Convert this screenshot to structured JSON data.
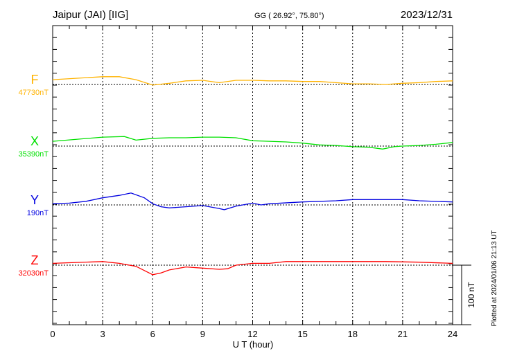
{
  "header": {
    "station": "Jaipur (JAI)  [IIG]",
    "coords": "GG ( 26.92°,  75.80°)",
    "date": "2023/12/31"
  },
  "footer_note": "Plotted at 2024/01/06 21:13 UT",
  "chart_data": {
    "type": "line",
    "title": "Jaipur (JAI)  [IIG]",
    "xlabel": "U T (hour)",
    "xlim": [
      0,
      24
    ],
    "xticks": [
      "0",
      "3",
      "6",
      "9",
      "12",
      "15",
      "18",
      "21",
      "24"
    ],
    "grid": "vertical dotted every 3 hours",
    "scale_bar": "100 nT",
    "series": [
      {
        "name": "F",
        "baseline_label": "47730nT",
        "baseline": 47730,
        "color": "#ffb300",
        "x": [
          0,
          3,
          4,
          5,
          6,
          7,
          8,
          9,
          10,
          11,
          12,
          13,
          14,
          15,
          16,
          17,
          18,
          19,
          20,
          21,
          22,
          23,
          24
        ],
        "values": [
          47738,
          47743,
          47743,
          47738,
          47729,
          47732,
          47736,
          47737,
          47733,
          47737,
          47737,
          47736,
          47736,
          47735,
          47735,
          47733,
          47731,
          47731,
          47730,
          47732,
          47733,
          47735,
          47736
        ]
      },
      {
        "name": "X",
        "baseline_label": "35390nT",
        "baseline": 35390,
        "color": "#00e000",
        "x": [
          0,
          3,
          4.3,
          5,
          6,
          7,
          8,
          9,
          10,
          11,
          12,
          13,
          14,
          15,
          16,
          17,
          18,
          19,
          19.8,
          20.5,
          21,
          22,
          23,
          24
        ],
        "values": [
          35398,
          35405,
          35406,
          35400,
          35403,
          35404,
          35404,
          35405,
          35405,
          35404,
          35399,
          35398,
          35397,
          35395,
          35392,
          35391,
          35389,
          35388,
          35385,
          35389,
          35390,
          35391,
          35393,
          35396
        ]
      },
      {
        "name": "Y",
        "baseline_label": "190nT",
        "baseline": 190,
        "color": "#0000e0",
        "x": [
          0,
          1,
          2,
          3,
          4,
          4.7,
          5.5,
          6,
          6.5,
          7,
          8,
          9,
          10,
          10.3,
          11,
          12,
          12.5,
          13,
          15,
          17,
          18,
          20,
          21,
          22,
          24
        ],
        "values": [
          192,
          193,
          196,
          202,
          206,
          210,
          202,
          192,
          187,
          185,
          187,
          189,
          184,
          182,
          188,
          193,
          190,
          192,
          195,
          197,
          199,
          199,
          199,
          197,
          195
        ]
      },
      {
        "name": "Z",
        "baseline_label": "32030nT",
        "baseline": 32030,
        "color": "#ff0000",
        "x": [
          0,
          3,
          4,
          5,
          6,
          6.5,
          7,
          8,
          9,
          10,
          10.5,
          11,
          12,
          13,
          14,
          16,
          18,
          20,
          22,
          24
        ],
        "values": [
          32033,
          32036,
          32033,
          32028,
          32014,
          32017,
          32022,
          32027,
          32025,
          32023,
          32024,
          32030,
          32033,
          32033,
          32036,
          32036,
          32036,
          32036,
          32035,
          32033
        ]
      }
    ]
  }
}
